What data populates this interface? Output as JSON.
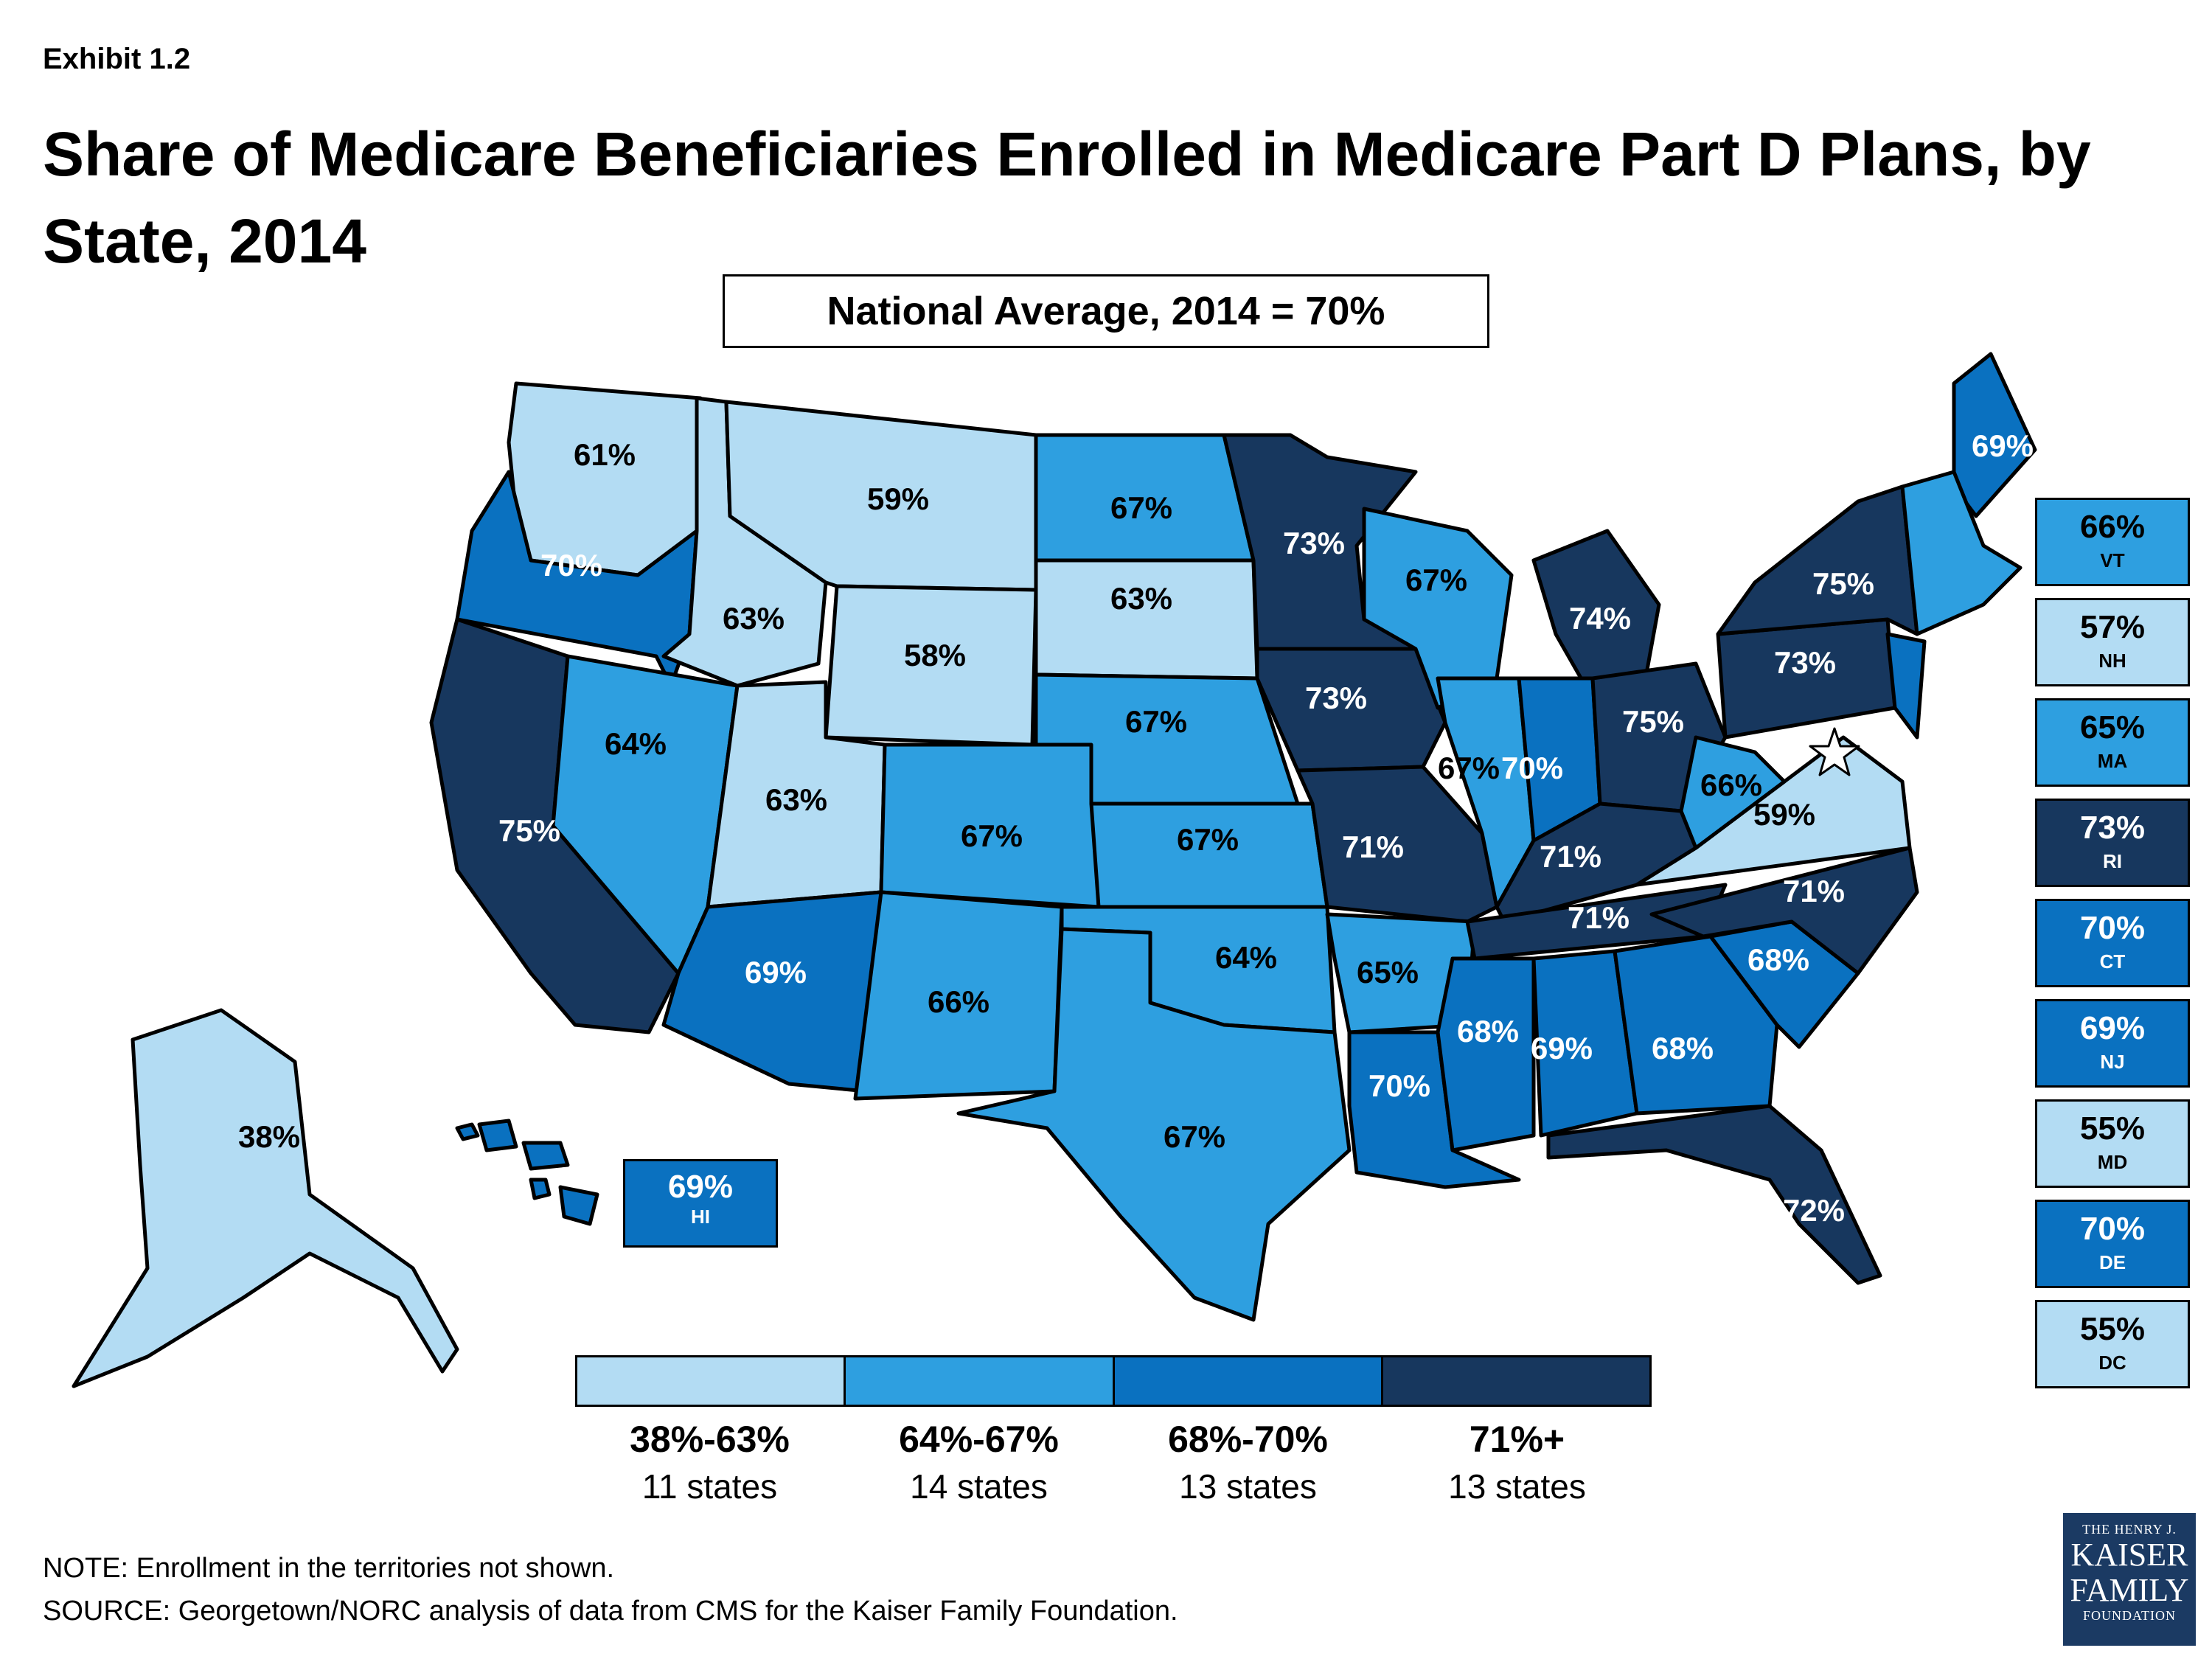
{
  "exhibit": "Exhibit 1.2",
  "title": "Share of Medicare Beneficiaries Enrolled in Medicare Part D Plans, by State, 2014",
  "national_average": "National Average, 2014 = 70%",
  "colors": {
    "tier1": "#b3dcf3",
    "tier2": "#2e9fe0",
    "tier3": "#0a71c0",
    "tier4": "#17375e"
  },
  "map_labels": [
    {
      "state": "WA",
      "value": "61%"
    },
    {
      "state": "OR",
      "value": "70%"
    },
    {
      "state": "CA",
      "value": "75%"
    },
    {
      "state": "NV",
      "value": "64%"
    },
    {
      "state": "ID",
      "value": "63%"
    },
    {
      "state": "MT",
      "value": "59%"
    },
    {
      "state": "WY",
      "value": "58%"
    },
    {
      "state": "UT",
      "value": "63%"
    },
    {
      "state": "AZ",
      "value": "69%"
    },
    {
      "state": "CO",
      "value": "67%"
    },
    {
      "state": "NM",
      "value": "66%"
    },
    {
      "state": "ND",
      "value": "67%"
    },
    {
      "state": "SD",
      "value": "63%"
    },
    {
      "state": "NE",
      "value": "67%"
    },
    {
      "state": "KS",
      "value": "67%"
    },
    {
      "state": "OK",
      "value": "64%"
    },
    {
      "state": "TX",
      "value": "67%"
    },
    {
      "state": "MN",
      "value": "73%"
    },
    {
      "state": "IA",
      "value": "73%"
    },
    {
      "state": "MO",
      "value": "71%"
    },
    {
      "state": "AR",
      "value": "65%"
    },
    {
      "state": "LA",
      "value": "70%"
    },
    {
      "state": "WI",
      "value": "67%"
    },
    {
      "state": "IL",
      "value": "67%"
    },
    {
      "state": "MI",
      "value": "74%"
    },
    {
      "state": "IN",
      "value": "70%"
    },
    {
      "state": "OH",
      "value": "75%"
    },
    {
      "state": "KY",
      "value": "71%"
    },
    {
      "state": "TN",
      "value": "71%"
    },
    {
      "state": "MS",
      "value": "68%"
    },
    {
      "state": "AL",
      "value": "69%"
    },
    {
      "state": "GA",
      "value": "68%"
    },
    {
      "state": "FL",
      "value": "72%"
    },
    {
      "state": "SC",
      "value": "68%"
    },
    {
      "state": "NC",
      "value": "71%"
    },
    {
      "state": "VA",
      "value": "59%"
    },
    {
      "state": "WV",
      "value": "66%"
    },
    {
      "state": "PA",
      "value": "73%"
    },
    {
      "state": "NY",
      "value": "75%"
    },
    {
      "state": "ME",
      "value": "69%"
    },
    {
      "state": "AK",
      "value": "38%"
    }
  ],
  "hawaii": {
    "value": "69%",
    "abbr": "HI"
  },
  "side_boxes": [
    {
      "value": "66%",
      "abbr": "VT",
      "tier": "tier2"
    },
    {
      "value": "57%",
      "abbr": "NH",
      "tier": "tier1"
    },
    {
      "value": "65%",
      "abbr": "MA",
      "tier": "tier2"
    },
    {
      "value": "73%",
      "abbr": "RI",
      "tier": "tier4"
    },
    {
      "value": "70%",
      "abbr": "CT",
      "tier": "tier3"
    },
    {
      "value": "69%",
      "abbr": "NJ",
      "tier": "tier3"
    },
    {
      "value": "55%",
      "abbr": "MD",
      "tier": "tier1"
    },
    {
      "value": "70%",
      "abbr": "DE",
      "tier": "tier3"
    },
    {
      "value": "55%",
      "abbr": "DC",
      "tier": "tier1"
    }
  ],
  "legend": [
    {
      "range": "38%-63%",
      "count": "11 states",
      "tier": "tier1"
    },
    {
      "range": "64%-67%",
      "count": "14 states",
      "tier": "tier2"
    },
    {
      "range": "68%-70%",
      "count": "13 states",
      "tier": "tier3"
    },
    {
      "range": "71%+",
      "count": "13 states",
      "tier": "tier4"
    }
  ],
  "note": "NOTE: Enrollment in the territories not shown.",
  "source": "SOURCE: Georgetown/NORC analysis of data from CMS for the Kaiser Family Foundation.",
  "logo": {
    "line1": "THE HENRY J.",
    "line2": "KAISER",
    "line3": "FAMILY",
    "line4": "FOUNDATION"
  }
}
